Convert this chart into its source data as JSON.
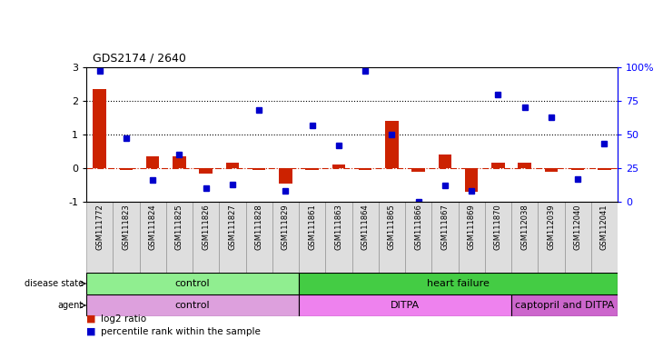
{
  "title": "GDS2174 / 2640",
  "samples": [
    "GSM111772",
    "GSM111823",
    "GSM111824",
    "GSM111825",
    "GSM111826",
    "GSM111827",
    "GSM111828",
    "GSM111829",
    "GSM111861",
    "GSM111863",
    "GSM111864",
    "GSM111865",
    "GSM111866",
    "GSM111867",
    "GSM111869",
    "GSM111870",
    "GSM112038",
    "GSM112039",
    "GSM112040",
    "GSM112041"
  ],
  "log2_vals": [
    2.35,
    -0.05,
    0.35,
    0.35,
    -0.15,
    0.15,
    -0.05,
    -0.45,
    -0.05,
    0.12,
    -0.05,
    1.4,
    -0.1,
    0.4,
    -0.7,
    0.15,
    0.15,
    -0.1,
    -0.05,
    -0.05
  ],
  "pct_vals": [
    97,
    47,
    16,
    35,
    10,
    13,
    68,
    8,
    57,
    42,
    97,
    50,
    0,
    12,
    8,
    80,
    70,
    63,
    17,
    43
  ],
  "disease_state": [
    {
      "label": "control",
      "start": 0,
      "end": 8,
      "color": "#90EE90"
    },
    {
      "label": "heart failure",
      "start": 8,
      "end": 20,
      "color": "#44CC44"
    }
  ],
  "agent": [
    {
      "label": "control",
      "start": 0,
      "end": 8,
      "color": "#DDA0DD"
    },
    {
      "label": "DITPA",
      "start": 8,
      "end": 16,
      "color": "#EE82EE"
    },
    {
      "label": "captopril and DITPA",
      "start": 16,
      "end": 20,
      "color": "#CC66CC"
    }
  ],
  "bar_color": "#CC2200",
  "dot_color": "#0000CC",
  "left_ylim": [
    -1,
    3
  ],
  "right_ylim": [
    0,
    100
  ],
  "left_yticks": [
    -1,
    0,
    1,
    2,
    3
  ],
  "right_yticks": [
    0,
    25,
    50,
    75,
    100
  ],
  "dotted_hlines": [
    1,
    2
  ],
  "legend_items": [
    {
      "label": "log2 ratio",
      "color": "#CC2200"
    },
    {
      "label": "percentile rank within the sample",
      "color": "#0000CC"
    }
  ]
}
